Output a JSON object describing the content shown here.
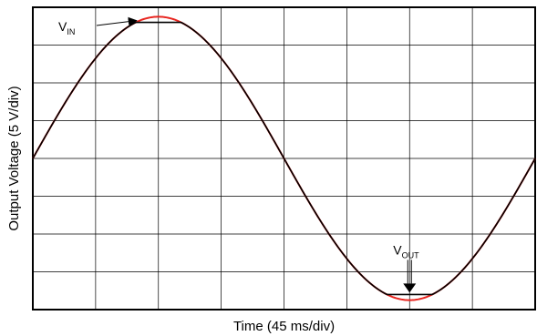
{
  "chart_data": {
    "type": "line",
    "title": "",
    "xlabel": "Time (45 ms/div)",
    "ylabel": "Output Voltage (5 V/div)",
    "x_divisions": 8,
    "y_divisions": 8,
    "grid": true,
    "x_unit_per_div_ms": 45,
    "y_unit_per_div_V": 5,
    "xlim_div": [
      0,
      8
    ],
    "ylim_div": [
      -4,
      4
    ],
    "series": [
      {
        "label": "VIN",
        "color": "#e8251f",
        "amplitude_div": 3.75,
        "period_div": 8,
        "phase_div": 0,
        "clip_div": null
      },
      {
        "label": "VOUT",
        "color": "#000000",
        "amplitude_div": 3.75,
        "period_div": 8,
        "phase_div": 0,
        "clip_div": 3.6
      }
    ],
    "annotations": [
      {
        "main": "V",
        "sub": "IN",
        "target": "VIN"
      },
      {
        "main": "V",
        "sub": "OUT",
        "target": "VOUT"
      }
    ]
  }
}
